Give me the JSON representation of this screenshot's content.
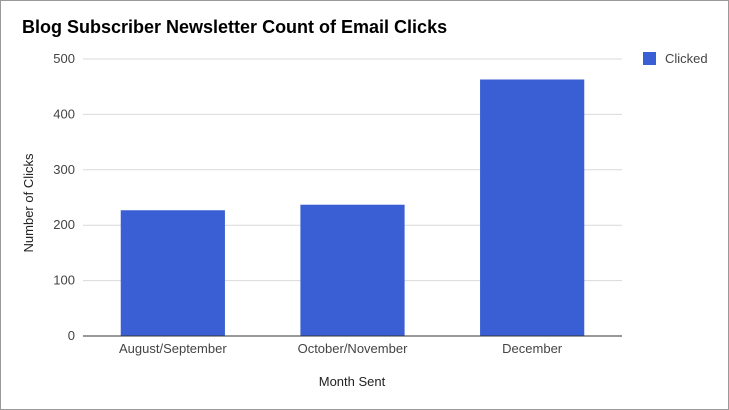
{
  "chart_data": {
    "type": "bar",
    "title": "Blog Subscriber Newsletter Count of Email Clicks",
    "xlabel": "Month Sent",
    "ylabel": "Number of Clicks",
    "categories": [
      "August/September",
      "October/November",
      "December"
    ],
    "series": [
      {
        "name": "Clicked",
        "values": [
          227,
          237,
          463
        ],
        "color": "#3a5fd4"
      }
    ],
    "ylim": [
      0,
      500
    ],
    "yticks": [
      0,
      100,
      200,
      300,
      400,
      500
    ],
    "grid": true,
    "legend_position": "right"
  }
}
